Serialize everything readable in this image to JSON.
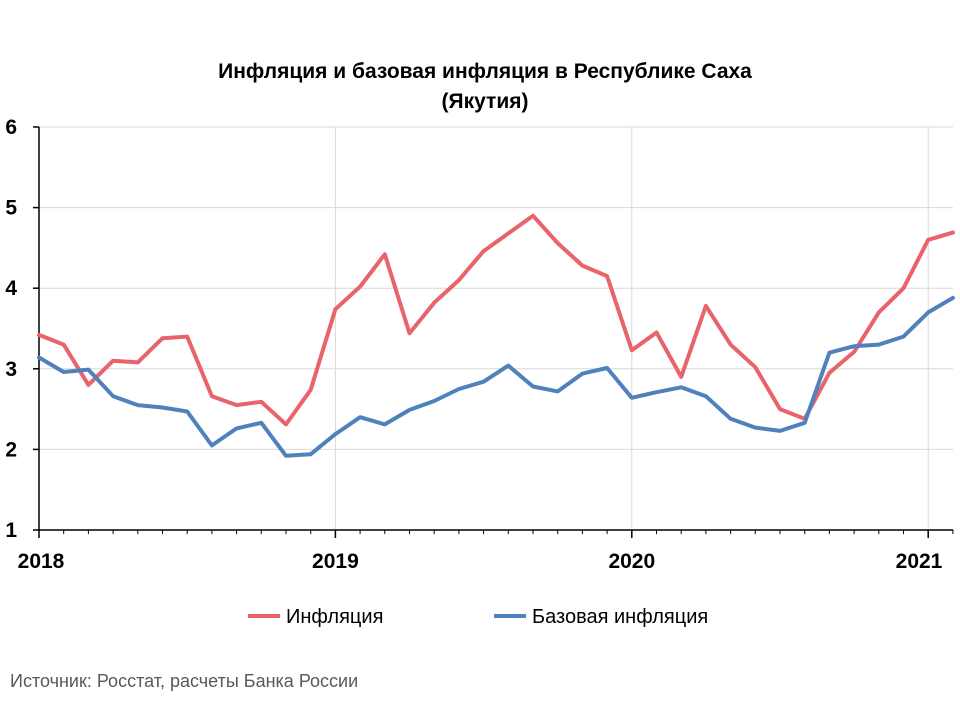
{
  "chart_data": {
    "type": "line",
    "title_line1": "Инфляция и базовая инфляция в Республике Саха",
    "title_line2": "(Якутия)",
    "xlabel": "",
    "ylabel": "",
    "ylim": [
      1,
      6
    ],
    "yticks": [
      "1",
      "2",
      "3",
      "4",
      "5",
      "6"
    ],
    "x_range": [
      "2018-01",
      "2021-02"
    ],
    "year_labels": [
      "2018",
      "2019",
      "2020",
      "2021"
    ],
    "x": [
      "2018-01",
      "2018-02",
      "2018-03",
      "2018-04",
      "2018-05",
      "2018-06",
      "2018-07",
      "2018-08",
      "2018-09",
      "2018-10",
      "2018-11",
      "2018-12",
      "2019-01",
      "2019-02",
      "2019-03",
      "2019-04",
      "2019-05",
      "2019-06",
      "2019-07",
      "2019-08",
      "2019-09",
      "2019-10",
      "2019-11",
      "2019-12",
      "2020-01",
      "2020-02",
      "2020-03",
      "2020-04",
      "2020-05",
      "2020-06",
      "2020-07",
      "2020-08",
      "2020-09",
      "2020-10",
      "2020-11",
      "2020-12",
      "2021-01",
      "2021-02"
    ],
    "grid": "vertical and horizontal",
    "legend_position": "bottom",
    "series": [
      {
        "name": "Инфляция",
        "color": "#e8636a",
        "values": [
          3.42,
          3.3,
          2.8,
          3.1,
          3.08,
          3.38,
          3.4,
          2.66,
          2.55,
          2.59,
          2.31,
          2.74,
          3.74,
          4.02,
          4.42,
          3.44,
          3.82,
          4.1,
          4.46,
          4.68,
          4.9,
          4.56,
          4.28,
          4.15,
          3.23,
          3.45,
          2.9,
          3.78,
          3.3,
          3.02,
          2.5,
          2.38,
          2.95,
          3.21,
          3.7,
          4.0,
          4.6,
          4.69
        ]
      },
      {
        "name": "Базовая инфляция",
        "color": "#4f81bd",
        "values": [
          3.14,
          2.96,
          2.99,
          2.66,
          2.55,
          2.52,
          2.47,
          2.05,
          2.26,
          2.33,
          1.92,
          1.94,
          2.19,
          2.4,
          2.31,
          2.49,
          2.6,
          2.75,
          2.84,
          3.04,
          2.78,
          2.72,
          2.94,
          3.01,
          2.64,
          2.71,
          2.77,
          2.66,
          2.38,
          2.27,
          2.23,
          2.33,
          3.2,
          3.28,
          3.3,
          3.4,
          3.7,
          3.88
        ]
      }
    ]
  },
  "source_note": "Источник: Росстат, расчеты Банка России"
}
